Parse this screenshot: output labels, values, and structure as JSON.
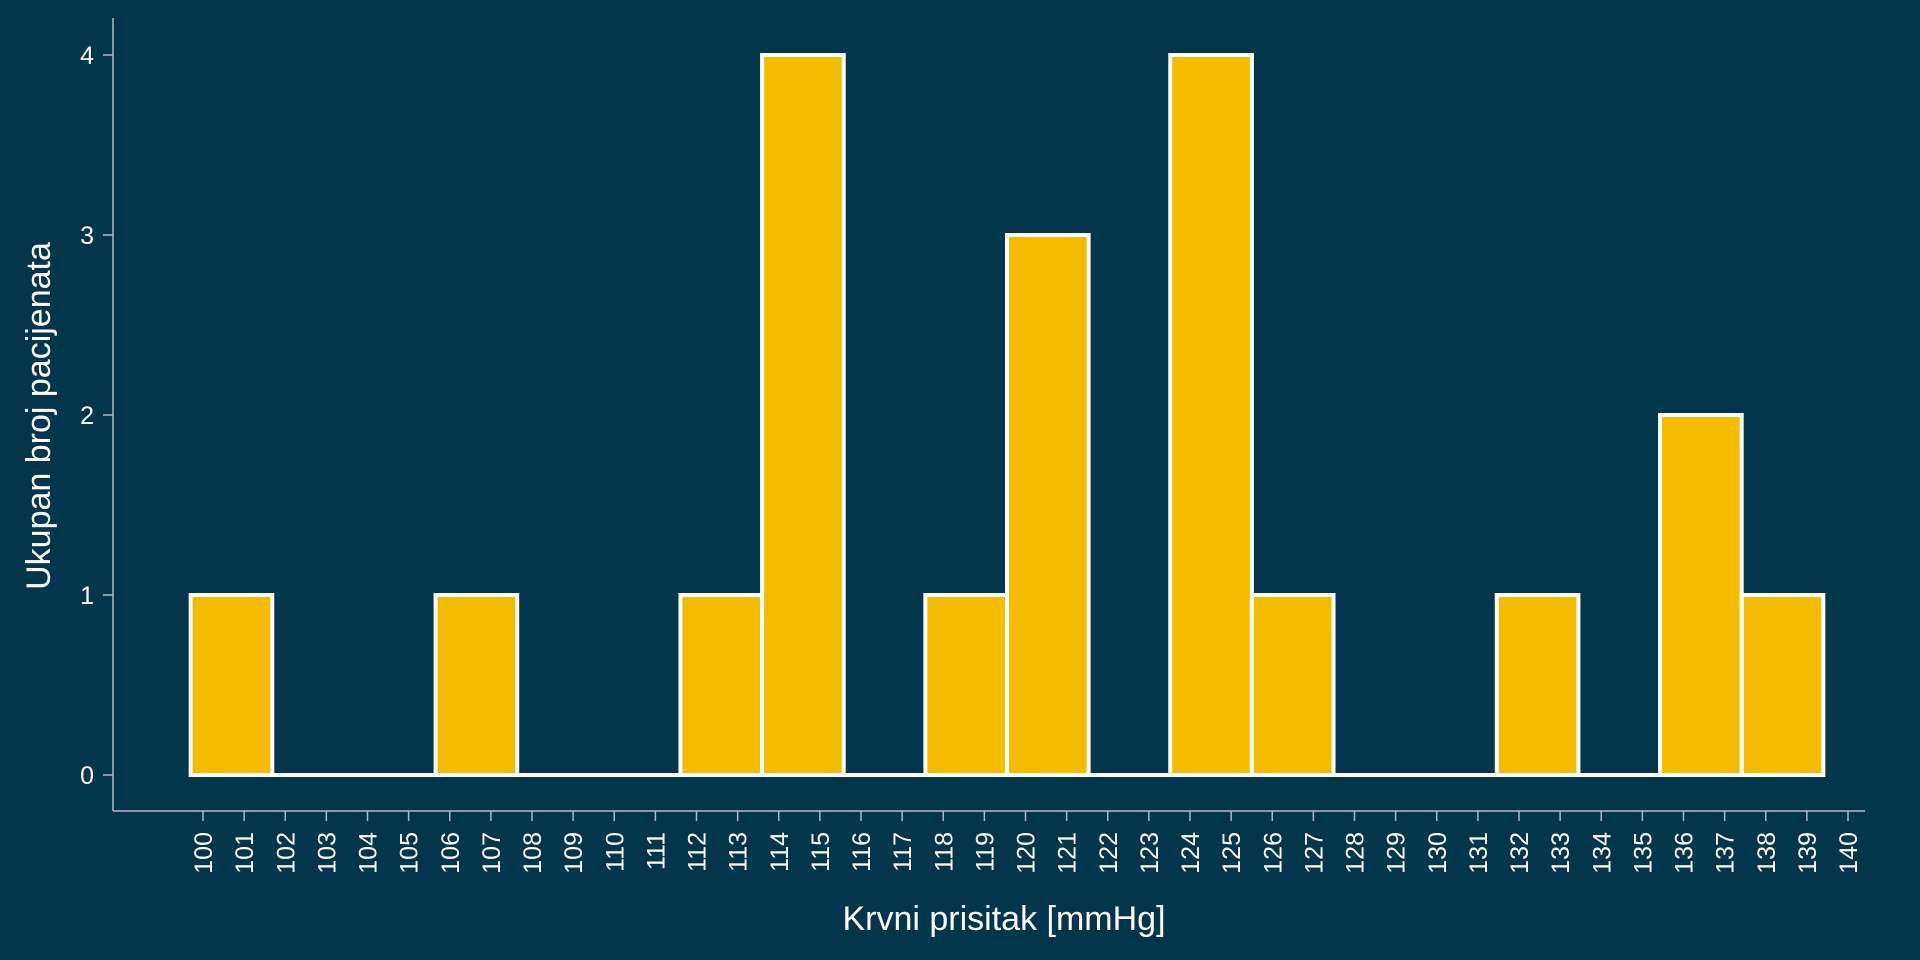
{
  "colors": {
    "background": "#03354c",
    "bar_fill": "#f3bc00",
    "bar_edge": "#ffffff",
    "axis": "#b0b8bf",
    "text": "#ffffff"
  },
  "chart_data": {
    "type": "bar",
    "subtype": "histogram",
    "title": "",
    "xlabel": "Krvni prisitak [mmHg]",
    "ylabel": "Ukupan broj pacijenata",
    "xlim": [
      100,
      140
    ],
    "ylim": [
      0,
      4
    ],
    "grid": false,
    "bin_start": 99.7,
    "bin_width": 1.985,
    "counts": [
      1,
      0,
      0,
      1,
      0,
      0,
      1,
      4,
      0,
      1,
      3,
      0,
      4,
      1,
      0,
      0,
      1,
      0,
      2,
      1
    ],
    "x_ticks": [
      "100",
      "101",
      "102",
      "103",
      "104",
      "105",
      "106",
      "107",
      "108",
      "109",
      "110",
      "111",
      "112",
      "113",
      "114",
      "115",
      "116",
      "117",
      "118",
      "119",
      "120",
      "121",
      "122",
      "123",
      "124",
      "125",
      "126",
      "127",
      "128",
      "129",
      "130",
      "131",
      "132",
      "133",
      "134",
      "135",
      "136",
      "137",
      "138",
      "139",
      "140"
    ],
    "y_ticks": [
      "0",
      "1",
      "2",
      "3",
      "4"
    ]
  }
}
